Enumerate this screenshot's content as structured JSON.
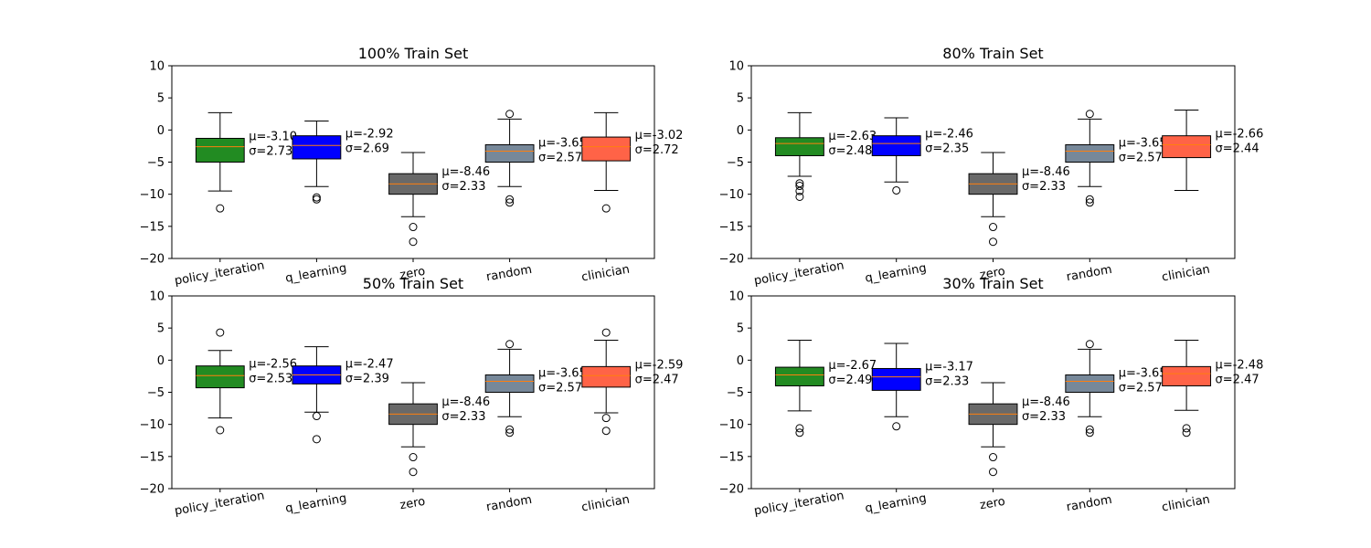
{
  "chart_data": [
    {
      "type": "box",
      "title": "100% Train Set",
      "categories": [
        "policy_iteration",
        "q_learning",
        "zero",
        "random",
        "clinician"
      ],
      "ylim": [
        -20,
        10
      ],
      "yticks": [
        "10",
        "5",
        "0",
        "−5",
        "−10",
        "−15",
        "−20"
      ],
      "colors": [
        "#228b22",
        "#0000ff",
        "#696969",
        "#778899",
        "#ff6347"
      ],
      "boxes": [
        {
          "whisker_low": -9.5,
          "q1": -5.0,
          "median": -2.6,
          "q3": -1.3,
          "whisker_high": 2.7,
          "outliers": [
            -12.2
          ],
          "mu": "μ=-3.10",
          "sigma": "σ=2.73"
        },
        {
          "whisker_low": -8.8,
          "q1": -4.5,
          "median": -2.4,
          "q3": -0.9,
          "whisker_high": 1.4,
          "outliers": [
            -10.5,
            -10.8
          ],
          "mu": "μ=-2.92",
          "sigma": "σ=2.69"
        },
        {
          "whisker_low": -13.5,
          "q1": -10.0,
          "median": -8.4,
          "q3": -6.8,
          "whisker_high": -3.5,
          "outliers": [
            -15.1,
            -17.4
          ],
          "mu": "μ=-8.46",
          "sigma": "σ=2.33"
        },
        {
          "whisker_low": -8.8,
          "q1": -5.0,
          "median": -3.3,
          "q3": -2.3,
          "whisker_high": 1.7,
          "outliers": [
            2.5,
            -10.8,
            -11.3
          ],
          "mu": "μ=-3.65",
          "sigma": "σ=2.57"
        },
        {
          "whisker_low": -9.4,
          "q1": -4.8,
          "median": -2.6,
          "q3": -1.1,
          "whisker_high": 2.7,
          "outliers": [
            -12.2
          ],
          "mu": "μ=-3.02",
          "sigma": "σ=2.72"
        }
      ]
    },
    {
      "type": "box",
      "title": "80% Train Set",
      "categories": [
        "policy_iteration",
        "q_learning",
        "zero",
        "random",
        "clinician"
      ],
      "ylim": [
        -20,
        10
      ],
      "yticks": [
        "10",
        "5",
        "0",
        "−5",
        "−10",
        "−15",
        "−20"
      ],
      "colors": [
        "#228b22",
        "#0000ff",
        "#696969",
        "#778899",
        "#ff6347"
      ],
      "boxes": [
        {
          "whisker_low": -7.2,
          "q1": -4.0,
          "median": -2.1,
          "q3": -1.2,
          "whisker_high": 2.7,
          "outliers": [
            -8.3,
            -8.7,
            -9.5,
            -10.4
          ],
          "mu": "μ=-2.63",
          "sigma": "σ=2.48"
        },
        {
          "whisker_low": -8.1,
          "q1": -4.0,
          "median": -2.1,
          "q3": -0.9,
          "whisker_high": 1.9,
          "outliers": [
            -9.4
          ],
          "mu": "μ=-2.46",
          "sigma": "σ=2.35"
        },
        {
          "whisker_low": -13.5,
          "q1": -10.0,
          "median": -8.4,
          "q3": -6.8,
          "whisker_high": -3.5,
          "outliers": [
            -15.1,
            -17.4
          ],
          "mu": "μ=-8.46",
          "sigma": "σ=2.33"
        },
        {
          "whisker_low": -8.8,
          "q1": -5.0,
          "median": -3.3,
          "q3": -2.3,
          "whisker_high": 1.7,
          "outliers": [
            2.5,
            -10.8,
            -11.3
          ],
          "mu": "μ=-3.65",
          "sigma": "σ=2.57"
        },
        {
          "whisker_low": -9.4,
          "q1": -4.3,
          "median": -2.3,
          "q3": -0.9,
          "whisker_high": 3.1,
          "outliers": [],
          "mu": "μ=-2.66",
          "sigma": "σ=2.44"
        }
      ]
    },
    {
      "type": "box",
      "title": "50% Train Set",
      "categories": [
        "policy_iteration",
        "q_learning",
        "zero",
        "random",
        "clinician"
      ],
      "ylim": [
        -20,
        10
      ],
      "yticks": [
        "10",
        "5",
        "0",
        "−5",
        "−10",
        "−15",
        "−20"
      ],
      "colors": [
        "#228b22",
        "#0000ff",
        "#696969",
        "#778899",
        "#ff6347"
      ],
      "boxes": [
        {
          "whisker_low": -9.0,
          "q1": -4.3,
          "median": -2.4,
          "q3": -0.9,
          "whisker_high": 1.5,
          "outliers": [
            4.3,
            -10.9
          ],
          "mu": "μ=-2.56",
          "sigma": "σ=2.53"
        },
        {
          "whisker_low": -8.1,
          "q1": -3.7,
          "median": -2.3,
          "q3": -0.9,
          "whisker_high": 2.1,
          "outliers": [
            -8.7,
            -12.3
          ],
          "mu": "μ=-2.47",
          "sigma": "σ=2.39"
        },
        {
          "whisker_low": -13.5,
          "q1": -10.0,
          "median": -8.4,
          "q3": -6.8,
          "whisker_high": -3.5,
          "outliers": [
            -15.1,
            -17.4
          ],
          "mu": "μ=-8.46",
          "sigma": "σ=2.33"
        },
        {
          "whisker_low": -8.8,
          "q1": -5.0,
          "median": -3.3,
          "q3": -2.3,
          "whisker_high": 1.7,
          "outliers": [
            2.5,
            -10.8,
            -11.3
          ],
          "mu": "μ=-3.65",
          "sigma": "σ=2.57"
        },
        {
          "whisker_low": -8.2,
          "q1": -4.2,
          "median": -2.4,
          "q3": -1.0,
          "whisker_high": 3.1,
          "outliers": [
            4.3,
            -9.0,
            -11.0
          ],
          "mu": "μ=-2.59",
          "sigma": "σ=2.47"
        }
      ]
    },
    {
      "type": "box",
      "title": "30% Train Set",
      "categories": [
        "policy_iteration",
        "q_learning",
        "zero",
        "random",
        "clinician"
      ],
      "ylim": [
        -20,
        10
      ],
      "yticks": [
        "10",
        "5",
        "0",
        "−5",
        "−10",
        "−15",
        "−20"
      ],
      "colors": [
        "#228b22",
        "#0000ff",
        "#696969",
        "#778899",
        "#ff6347"
      ],
      "boxes": [
        {
          "whisker_low": -7.9,
          "q1": -4.0,
          "median": -2.3,
          "q3": -1.1,
          "whisker_high": 3.1,
          "outliers": [
            -10.6,
            -11.3
          ],
          "mu": "μ=-2.67",
          "sigma": "σ=2.49"
        },
        {
          "whisker_low": -8.8,
          "q1": -4.7,
          "median": -2.6,
          "q3": -1.3,
          "whisker_high": 2.6,
          "outliers": [
            -10.3
          ],
          "mu": "μ=-3.17",
          "sigma": "σ=2.33"
        },
        {
          "whisker_low": -13.5,
          "q1": -10.0,
          "median": -8.4,
          "q3": -6.8,
          "whisker_high": -3.5,
          "outliers": [
            -15.1,
            -17.4
          ],
          "mu": "μ=-8.46",
          "sigma": "σ=2.33"
        },
        {
          "whisker_low": -8.8,
          "q1": -5.0,
          "median": -3.3,
          "q3": -2.3,
          "whisker_high": 1.7,
          "outliers": [
            2.5,
            -10.8,
            -11.3
          ],
          "mu": "μ=-3.65",
          "sigma": "σ=2.57"
        },
        {
          "whisker_low": -7.8,
          "q1": -4.0,
          "median": -2.1,
          "q3": -1.0,
          "whisker_high": 3.1,
          "outliers": [
            -10.6,
            -11.3
          ],
          "mu": "μ=-2.48",
          "sigma": "σ=2.47"
        }
      ]
    }
  ]
}
